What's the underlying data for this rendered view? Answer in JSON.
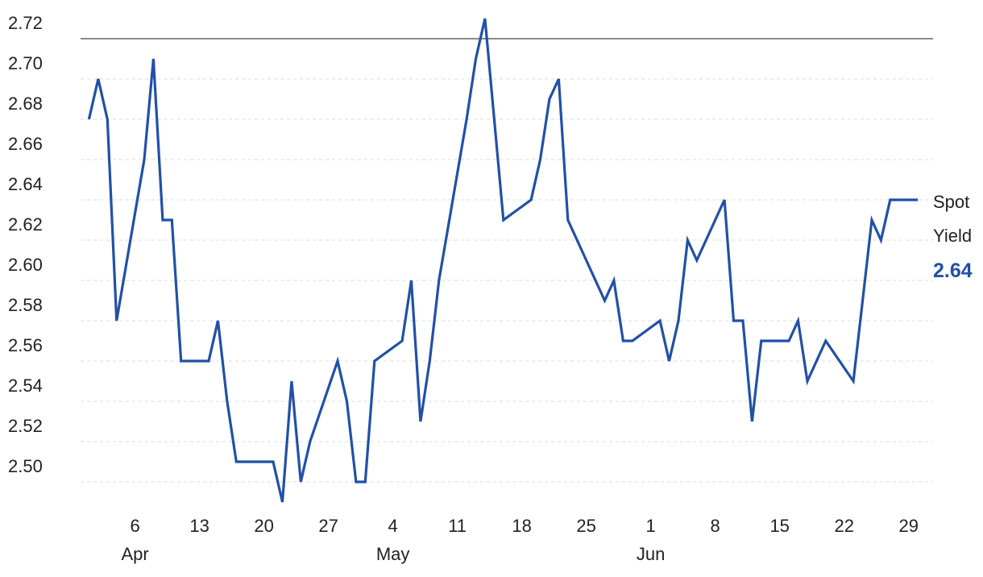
{
  "chart_data": {
    "type": "line",
    "x": [
      "Apr 1",
      "Apr 2",
      "Apr 3",
      "Apr 4",
      "Apr 7",
      "Apr 8",
      "Apr 9",
      "Apr 10",
      "Apr 11",
      "Apr 14",
      "Apr 15",
      "Apr 16",
      "Apr 17",
      "Apr 21",
      "Apr 22",
      "Apr 23",
      "Apr 24",
      "Apr 25",
      "Apr 28",
      "Apr 29",
      "Apr 30",
      "May 1",
      "May 2",
      "May 5",
      "May 6",
      "May 7",
      "May 8",
      "May 9",
      "May 12",
      "May 13",
      "May 14",
      "May 15",
      "May 16",
      "May 19",
      "May 20",
      "May 21",
      "May 22",
      "May 23",
      "May 27",
      "May 28",
      "May 29",
      "May 30",
      "Jun 2",
      "Jun 3",
      "Jun 4",
      "Jun 5",
      "Jun 6",
      "Jun 9",
      "Jun 10",
      "Jun 11",
      "Jun 12",
      "Jun 13",
      "Jun 16",
      "Jun 17",
      "Jun 18",
      "Jun 20",
      "Jun 23",
      "Jun 24",
      "Jun 25",
      "Jun 26",
      "Jun 27",
      "Jun 30"
    ],
    "series": [
      {
        "name": "Spot Yield",
        "color": "#2150a8",
        "values": [
          2.68,
          2.7,
          2.68,
          2.58,
          2.66,
          2.71,
          2.63,
          2.63,
          2.56,
          2.56,
          2.58,
          2.54,
          2.51,
          2.51,
          2.49,
          2.55,
          2.5,
          2.52,
          2.56,
          2.54,
          2.5,
          2.5,
          2.56,
          2.57,
          2.6,
          2.53,
          2.56,
          2.6,
          2.68,
          2.71,
          2.73,
          2.68,
          2.63,
          2.64,
          2.66,
          2.69,
          2.7,
          2.63,
          2.59,
          2.6,
          2.57,
          2.57,
          2.58,
          2.56,
          2.58,
          2.62,
          2.61,
          2.64,
          2.58,
          2.58,
          2.53,
          2.57,
          2.57,
          2.58,
          2.55,
          2.57,
          2.55,
          2.59,
          2.63,
          2.62,
          2.64,
          2.64
        ]
      }
    ],
    "xlim": [
      "Mar 31",
      "Jul 2"
    ],
    "xticks": [
      {
        "value": "Apr 6",
        "label": "6"
      },
      {
        "value": "Apr 13",
        "label": "13"
      },
      {
        "value": "Apr 20",
        "label": "20"
      },
      {
        "value": "Apr 27",
        "label": "27"
      },
      {
        "value": "May 4",
        "label": "4"
      },
      {
        "value": "May 11",
        "label": "11"
      },
      {
        "value": "May 18",
        "label": "18"
      },
      {
        "value": "May 25",
        "label": "25"
      },
      {
        "value": "Jun 1",
        "label": "1"
      },
      {
        "value": "Jun 8",
        "label": "8"
      },
      {
        "value": "Jun 15",
        "label": "15"
      },
      {
        "value": "Jun 22",
        "label": "22"
      },
      {
        "value": "Jun 29",
        "label": "29"
      }
    ],
    "x_month_labels": [
      {
        "value": "Apr 6",
        "label": "Apr"
      },
      {
        "value": "May 4",
        "label": "May"
      },
      {
        "value": "Jun 1",
        "label": "Jun"
      }
    ],
    "ylim": [
      2.48,
      2.73
    ],
    "yticks": [
      {
        "value": 2.5,
        "label": "2.50"
      },
      2.52,
      2.54,
      2.56,
      2.58,
      {
        "value": 2.6,
        "label": "2.60"
      },
      2.62,
      2.64,
      2.66,
      2.68,
      {
        "value": 2.7,
        "label": "2.70"
      },
      2.72
    ],
    "grid": true
  }
}
